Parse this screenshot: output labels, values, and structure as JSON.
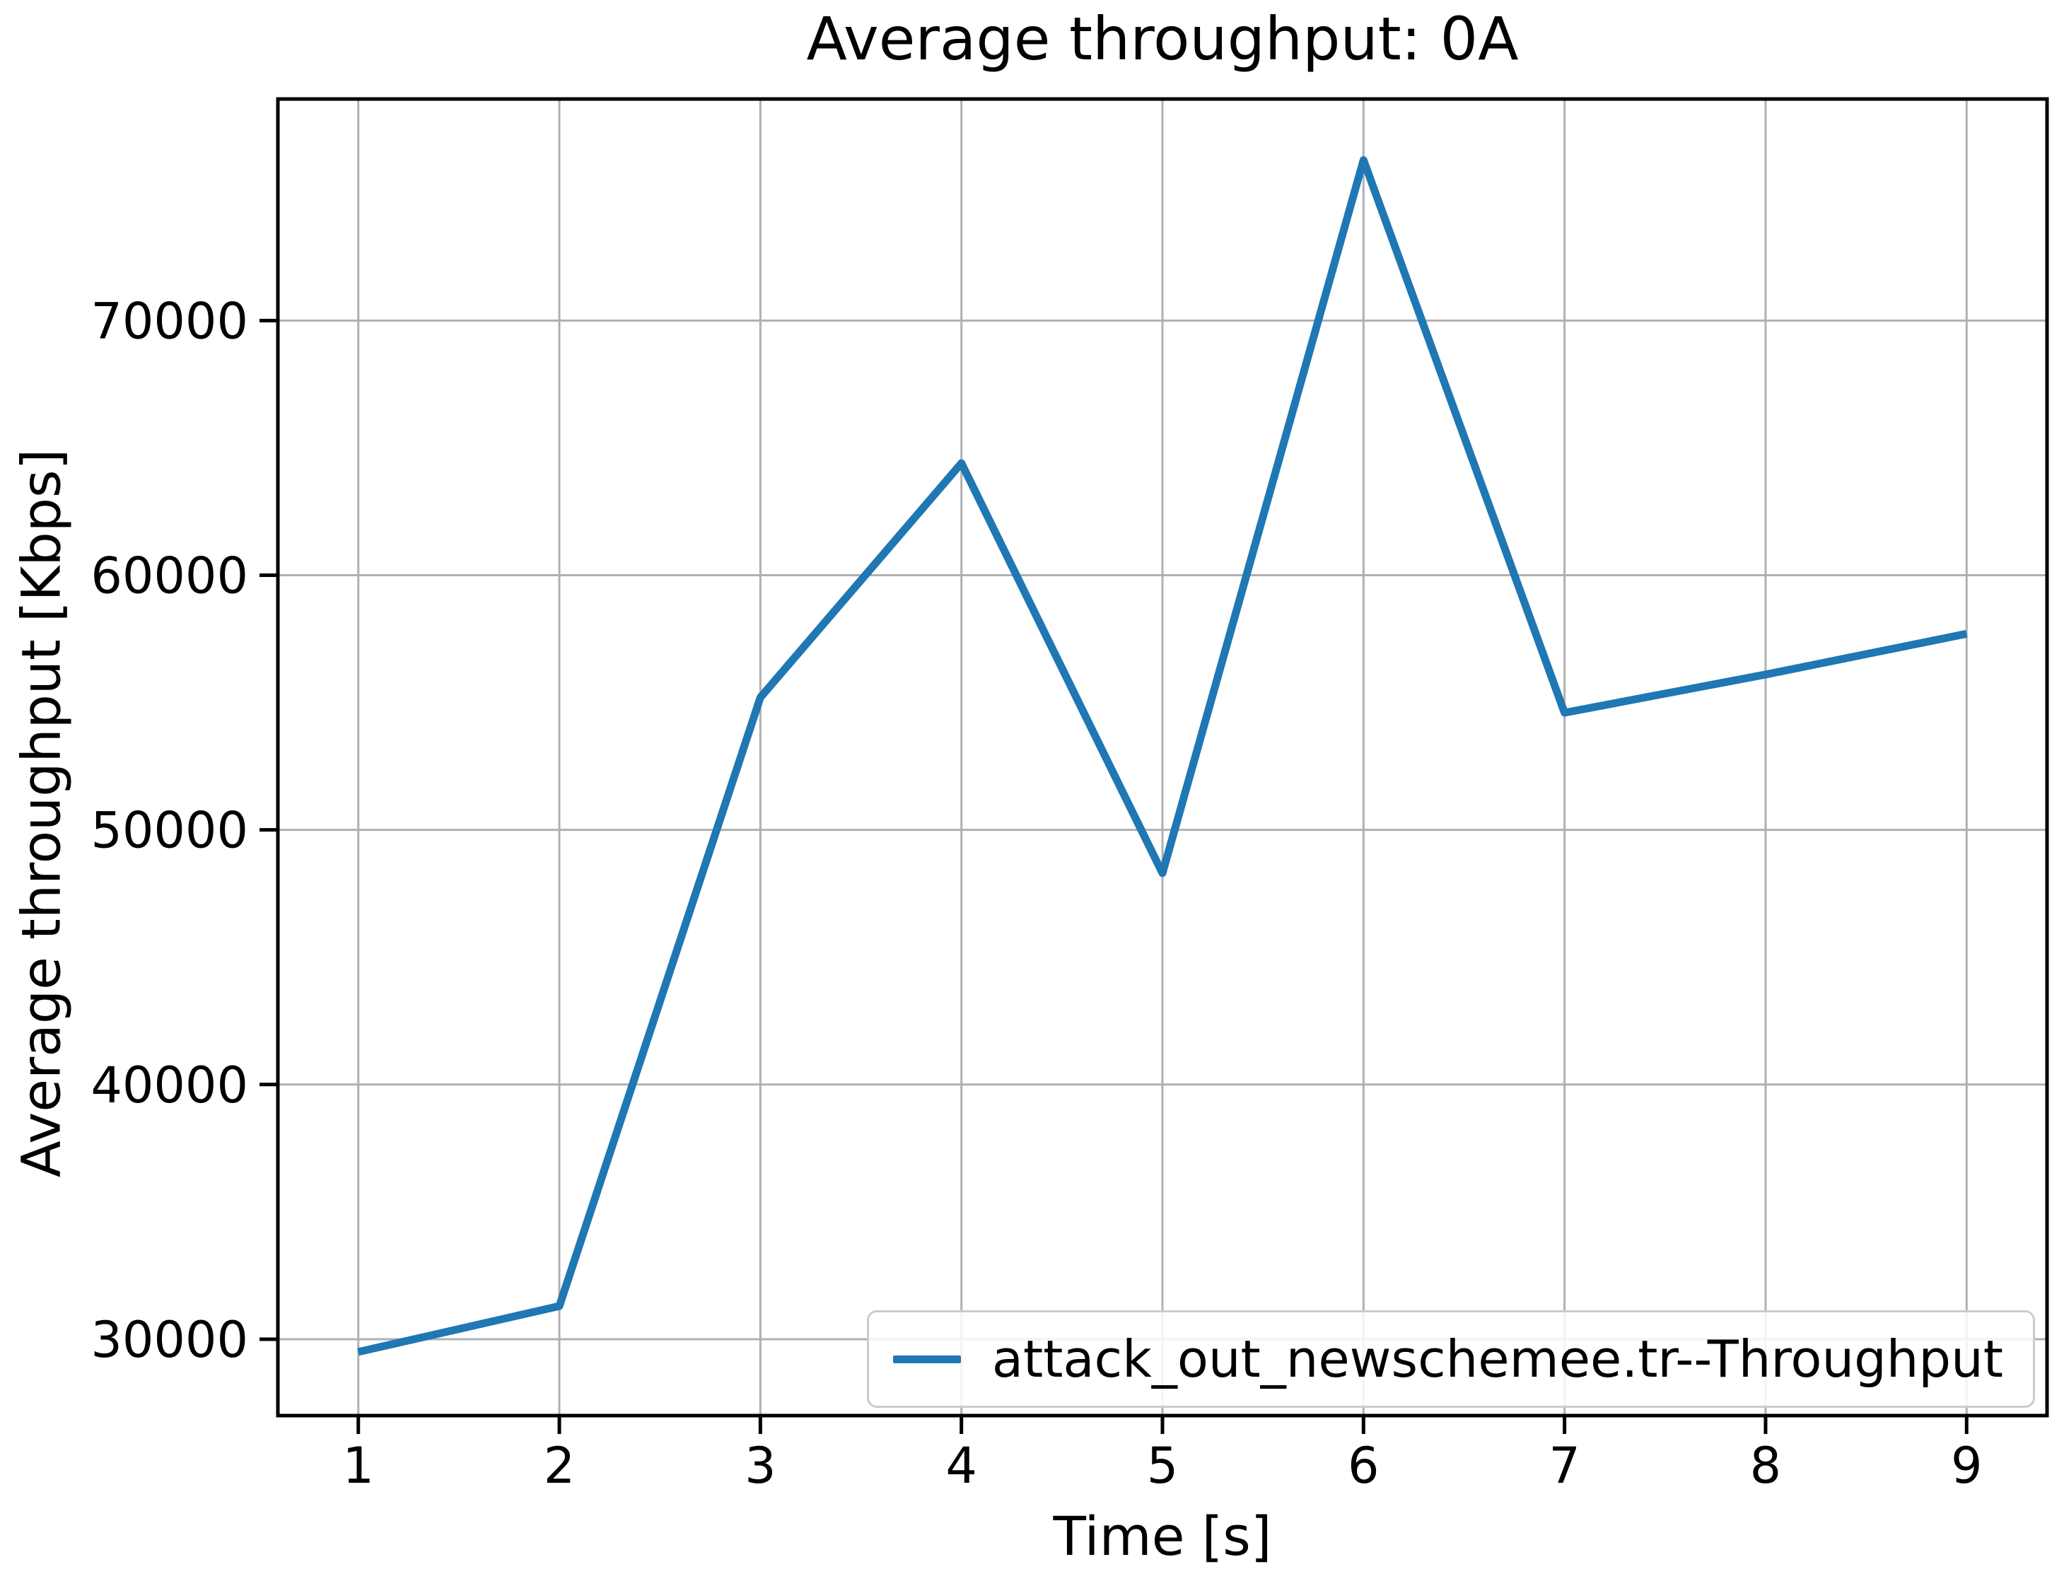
{
  "chart_data": {
    "type": "line",
    "title": "Average throughput: 0A",
    "xlabel": "Time [s]",
    "ylabel": "Average throughput [Kbps]",
    "x": [
      1,
      2,
      3,
      4,
      5,
      6,
      7,
      8,
      9
    ],
    "series": [
      {
        "name": "attack_out_newschemee.tr--Throughput",
        "color": "#1f77b4",
        "values": [
          29500,
          31300,
          55200,
          64400,
          48300,
          76300,
          54600,
          56100,
          57700
        ]
      }
    ],
    "xticks": [
      1,
      2,
      3,
      4,
      5,
      6,
      7,
      8,
      9
    ],
    "yticks": [
      30000,
      40000,
      50000,
      60000,
      70000
    ],
    "xlim": [
      0.6,
      9.4
    ],
    "ylim": [
      27000,
      78700
    ],
    "grid": true,
    "grid_color": "#b0b0b0",
    "spine_color": "#000000",
    "legend_position": "lower right"
  }
}
